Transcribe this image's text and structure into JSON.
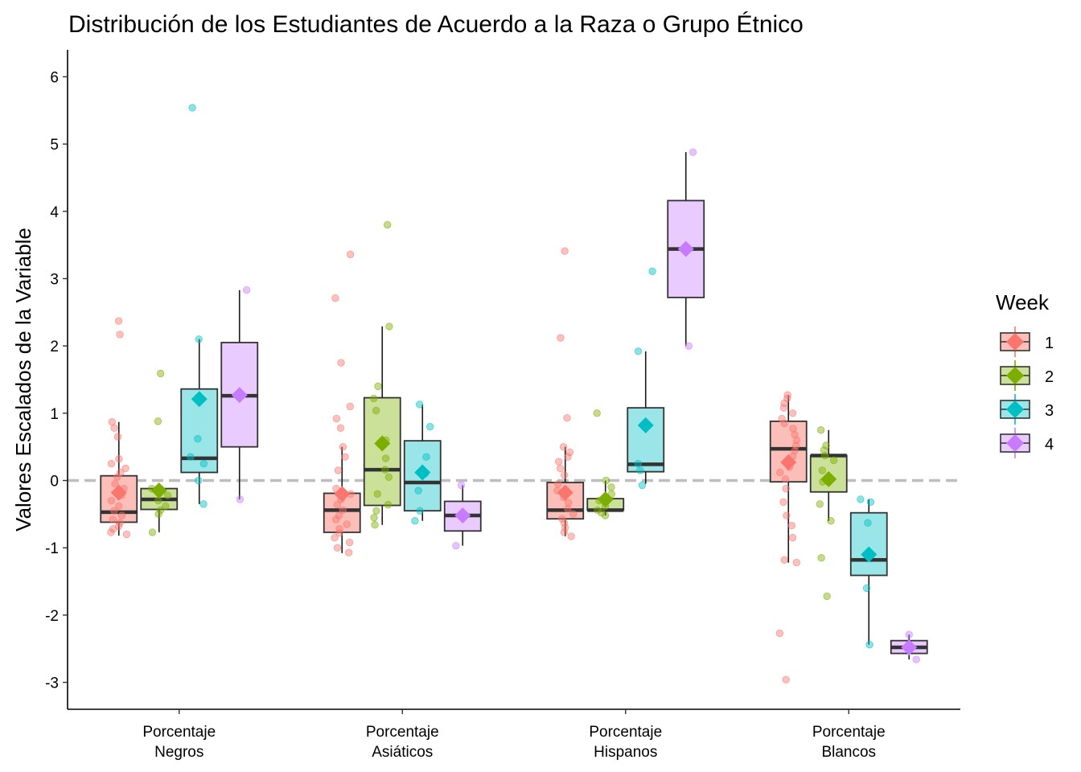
{
  "chart_data": {
    "type": "boxplot",
    "title": "Distribución de los Estudiantes de Acuerdo a la Raza o Grupo Étnico",
    "xlabel": "",
    "ylabel": "Valores Escalados de la Variable",
    "ylim": [
      -3.4,
      6.4
    ],
    "yticks": [
      -3,
      -2,
      -1,
      0,
      1,
      2,
      3,
      4,
      5,
      6
    ],
    "reference_line": 0,
    "grid": false,
    "legend": {
      "title": "Week",
      "position": "right"
    },
    "categories": [
      [
        "Porcentaje",
        "Negros"
      ],
      [
        "Porcentaje",
        "Asiáticos"
      ],
      [
        "Porcentaje",
        "Hispanos"
      ],
      [
        "Porcentaje",
        "Blancos"
      ]
    ],
    "series": [
      {
        "name": "1",
        "color": "#F8766D",
        "fill": "#FBBEB8",
        "boxes": [
          {
            "q1": -0.62,
            "median": -0.47,
            "q3": 0.07,
            "whisker_low": -0.82,
            "whisker_high": 0.87,
            "mean": -0.18,
            "points": [
              2.37,
              2.17,
              0.87,
              0.78,
              0.65,
              0.32,
              0.25,
              0.18,
              0.12,
              0.05,
              -0.05,
              -0.12,
              -0.22,
              -0.3,
              -0.38,
              -0.45,
              -0.52,
              -0.58,
              -0.63,
              -0.68,
              -0.72,
              -0.77,
              -0.8
            ]
          },
          {
            "q1": -0.77,
            "median": -0.44,
            "q3": -0.19,
            "whisker_low": -1.08,
            "whisker_high": 0.5,
            "mean": -0.2,
            "points": [
              3.36,
              2.71,
              1.75,
              1.1,
              0.92,
              0.78,
              0.5,
              0.35,
              0.15,
              -0.12,
              -0.2,
              -0.28,
              -0.36,
              -0.44,
              -0.52,
              -0.58,
              -0.65,
              -0.72,
              -0.78,
              -0.85,
              -0.92,
              -1.0,
              -1.07
            ]
          },
          {
            "q1": -0.57,
            "median": -0.44,
            "q3": -0.03,
            "whisker_low": -0.83,
            "whisker_high": 0.5,
            "mean": -0.18,
            "points": [
              3.41,
              2.12,
              0.93,
              0.5,
              0.42,
              0.35,
              0.28,
              0.18,
              0.08,
              -0.05,
              -0.15,
              -0.25,
              -0.33,
              -0.42,
              -0.5,
              -0.57,
              -0.63,
              -0.7,
              -0.77,
              -0.83
            ]
          },
          {
            "q1": -0.02,
            "median": 0.47,
            "q3": 0.88,
            "whisker_low": -1.22,
            "whisker_high": 1.27,
            "mean": 0.27,
            "points": [
              1.27,
              1.22,
              1.15,
              1.08,
              1.0,
              0.92,
              0.85,
              0.77,
              0.68,
              0.6,
              0.52,
              0.44,
              0.36,
              0.28,
              0.2,
              0.12,
              0.02,
              -0.12,
              -0.32,
              -0.52,
              -0.67,
              -0.85,
              -1.18,
              -1.22,
              -2.27,
              -2.96
            ]
          }
        ]
      },
      {
        "name": "2",
        "color": "#7CAE00",
        "fill": "#CBE099",
        "boxes": [
          {
            "q1": -0.43,
            "median": -0.28,
            "q3": -0.12,
            "whisker_low": -0.77,
            "whisker_high": -0.12,
            "mean": -0.15,
            "points": [
              1.59,
              0.88,
              -0.12,
              -0.22,
              -0.3,
              -0.38,
              -0.44,
              -0.5,
              -0.77
            ]
          },
          {
            "q1": -0.37,
            "median": 0.16,
            "q3": 1.23,
            "whisker_low": -0.66,
            "whisker_high": 2.29,
            "mean": 0.55,
            "points": [
              3.8,
              2.29,
              1.4,
              1.22,
              1.04,
              0.6,
              0.33,
              0.16,
              0.05,
              -0.2,
              -0.36,
              -0.45,
              -0.55,
              -0.66
            ]
          },
          {
            "q1": -0.44,
            "median": -0.44,
            "q3": -0.27,
            "whisker_low": -0.52,
            "whisker_high": 0.0,
            "mean": -0.28,
            "points": [
              1.0,
              0.0,
              -0.1,
              -0.2,
              -0.3,
              -0.38,
              -0.44,
              -0.48,
              -0.52
            ]
          },
          {
            "q1": -0.17,
            "median": 0.37,
            "q3": 0.37,
            "whisker_low": -0.6,
            "whisker_high": 0.75,
            "mean": 0.02,
            "points": [
              0.75,
              0.52,
              0.45,
              0.37,
              0.3,
              0.15,
              -0.02,
              -0.35,
              -0.6,
              -1.15,
              -1.72
            ]
          }
        ]
      },
      {
        "name": "3",
        "color": "#00BFC4",
        "fill": "#99E5E7",
        "boxes": [
          {
            "q1": 0.12,
            "median": 0.33,
            "q3": 1.36,
            "whisker_low": -0.35,
            "whisker_high": 2.1,
            "mean": 1.21,
            "points": [
              5.54,
              2.1,
              0.62,
              0.35,
              0.25,
              0.0,
              -0.35
            ]
          },
          {
            "q1": -0.45,
            "median": -0.03,
            "q3": 0.59,
            "whisker_low": -0.6,
            "whisker_high": 1.13,
            "mean": 0.12,
            "points": [
              1.13,
              0.8,
              0.35,
              0.1,
              -0.15,
              -0.45,
              -0.6
            ]
          },
          {
            "q1": 0.13,
            "median": 0.24,
            "q3": 1.08,
            "whisker_low": -0.05,
            "whisker_high": 1.92,
            "mean": 0.82,
            "points": [
              3.11,
              1.92,
              0.25,
              0.15,
              -0.07
            ]
          },
          {
            "q1": -1.41,
            "median": -1.18,
            "q3": -0.48,
            "whisker_low": -2.44,
            "whisker_high": -0.28,
            "mean": -1.1,
            "points": [
              -0.28,
              -0.32,
              -0.63,
              -1.6,
              -2.44
            ]
          }
        ]
      },
      {
        "name": "4",
        "color": "#C77CFF",
        "fill": "#E9CBFF",
        "boxes": [
          {
            "q1": 0.5,
            "median": 1.26,
            "q3": 2.05,
            "whisker_low": -0.28,
            "whisker_high": 2.83,
            "mean": 1.27,
            "points": [
              2.83,
              -0.28
            ]
          },
          {
            "q1": -0.75,
            "median": -0.52,
            "q3": -0.31,
            "whisker_low": -0.97,
            "whisker_high": -0.07,
            "mean": -0.52,
            "points": [
              -0.07,
              -0.97
            ]
          },
          {
            "q1": 2.72,
            "median": 3.44,
            "q3": 4.16,
            "whisker_low": 2.0,
            "whisker_high": 4.88,
            "mean": 3.44,
            "points": [
              4.88,
              2.0
            ]
          },
          {
            "q1": -2.57,
            "median": -2.48,
            "q3": -2.38,
            "whisker_low": -2.66,
            "whisker_high": -2.29,
            "mean": -2.48,
            "points": [
              -2.29,
              -2.66
            ]
          }
        ]
      }
    ]
  }
}
